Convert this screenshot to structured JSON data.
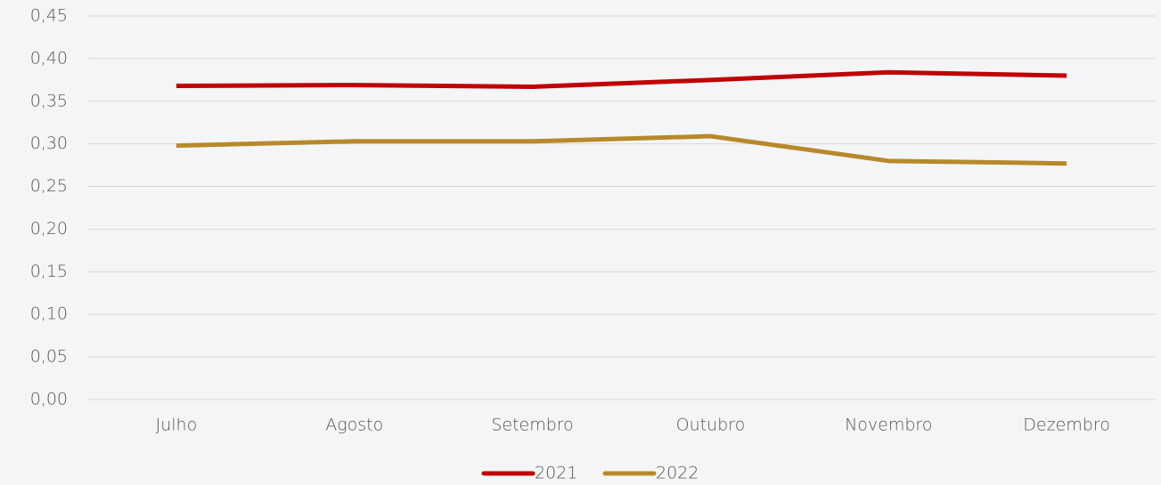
{
  "chart_data": {
    "type": "line",
    "categories": [
      "Julho",
      "Agosto",
      "Setembro",
      "Outubro",
      "Novembro",
      "Dezembro"
    ],
    "series": [
      {
        "name": "2021",
        "color": "#c00000",
        "values": [
          0.368,
          0.369,
          0.367,
          0.375,
          0.384,
          0.38
        ]
      },
      {
        "name": "2022",
        "color": "#b8892a",
        "values": [
          0.298,
          0.303,
          0.303,
          0.309,
          0.28,
          0.277
        ]
      }
    ],
    "ylim": [
      0,
      0.45
    ],
    "yticks": [
      {
        "value": 0,
        "label": "0,00"
      },
      {
        "value": 0.05,
        "label": "0,05"
      },
      {
        "value": 0.1,
        "label": "0,10"
      },
      {
        "value": 0.15,
        "label": "0,15"
      },
      {
        "value": 0.2,
        "label": "0,20"
      },
      {
        "value": 0.25,
        "label": "0,25"
      },
      {
        "value": 0.3,
        "label": "0,30"
      },
      {
        "value": 0.35,
        "label": "0,35"
      },
      {
        "value": 0.4,
        "label": "0,40"
      },
      {
        "value": 0.45,
        "label": "0,45"
      }
    ],
    "grid": true,
    "legend": "bottom"
  }
}
